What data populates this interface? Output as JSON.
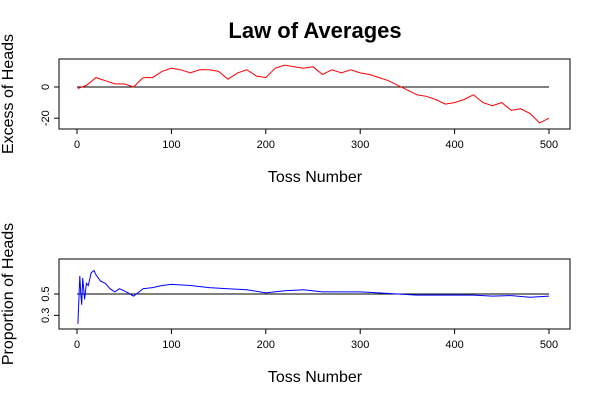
{
  "chart_data": [
    {
      "type": "line",
      "title": "Law of Averages",
      "xlabel": "Toss Number",
      "ylabel": "Excess of Heads",
      "xlim": [
        0,
        500
      ],
      "ylim": [
        -25,
        16
      ],
      "x_ticks": [
        0,
        100,
        200,
        300,
        400,
        500
      ],
      "y_ticks": [
        -20,
        0
      ],
      "reference_line": 0,
      "grid": false,
      "series": [
        {
          "color": "#ff0000",
          "x": [
            1,
            10,
            20,
            30,
            40,
            50,
            60,
            70,
            80,
            90,
            100,
            110,
            120,
            130,
            140,
            150,
            160,
            170,
            180,
            190,
            200,
            210,
            220,
            230,
            240,
            250,
            260,
            270,
            280,
            290,
            300,
            310,
            320,
            330,
            340,
            350,
            360,
            370,
            380,
            390,
            400,
            410,
            420,
            430,
            440,
            450,
            460,
            470,
            480,
            490,
            500
          ],
          "values": [
            -1,
            1,
            6,
            4,
            2,
            2,
            0,
            6,
            6,
            10,
            12,
            11,
            9,
            11,
            11,
            10,
            5,
            9,
            11,
            7,
            6,
            12,
            14,
            13,
            12,
            13,
            8,
            11,
            9,
            11,
            9,
            8,
            6,
            4,
            1,
            -2,
            -5,
            -6,
            -8,
            -11,
            -10,
            -8,
            -5,
            -10,
            -12,
            -10,
            -15,
            -14,
            -17,
            -23,
            -20
          ]
        }
      ]
    },
    {
      "type": "line",
      "xlabel": "Toss Number",
      "ylabel": "Proportion of Heads",
      "xlim": [
        0,
        500
      ],
      "ylim": [
        0.2,
        0.8
      ],
      "x_ticks": [
        0,
        100,
        200,
        300,
        400,
        500
      ],
      "y_ticks": [
        0.3,
        0.5
      ],
      "reference_line": 0.5,
      "grid": false,
      "series": [
        {
          "color": "#0000ff",
          "x": [
            1,
            2,
            3,
            4,
            5,
            6,
            8,
            10,
            12,
            15,
            18,
            20,
            25,
            30,
            35,
            40,
            45,
            50,
            60,
            70,
            80,
            90,
            100,
            120,
            140,
            160,
            180,
            200,
            220,
            240,
            260,
            280,
            300,
            320,
            340,
            360,
            380,
            400,
            420,
            440,
            460,
            480,
            500
          ],
          "values": [
            0.22,
            0.45,
            0.67,
            0.5,
            0.4,
            0.65,
            0.45,
            0.6,
            0.58,
            0.7,
            0.72,
            0.68,
            0.62,
            0.6,
            0.55,
            0.52,
            0.55,
            0.53,
            0.48,
            0.55,
            0.56,
            0.58,
            0.59,
            0.58,
            0.56,
            0.55,
            0.54,
            0.51,
            0.53,
            0.54,
            0.52,
            0.52,
            0.52,
            0.51,
            0.5,
            0.49,
            0.49,
            0.49,
            0.49,
            0.48,
            0.485,
            0.47,
            0.48
          ]
        }
      ]
    }
  ]
}
